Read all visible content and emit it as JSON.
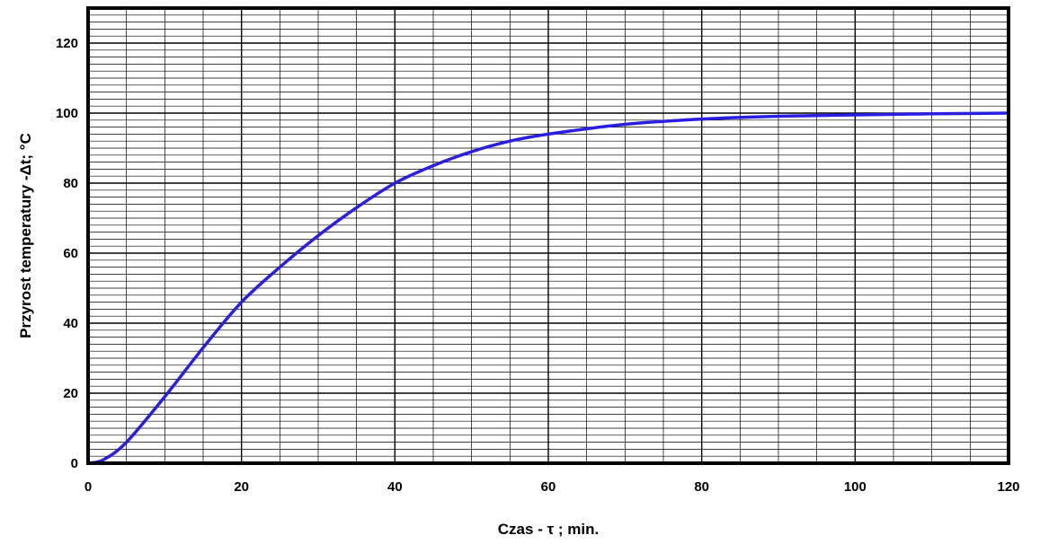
{
  "chart_data": {
    "type": "line",
    "title": "",
    "xlabel": "Czas - τ ; min.",
    "ylabel": "Przyrost temperatury -Δt; °C",
    "xlim": [
      0,
      120
    ],
    "ylim": [
      0,
      130
    ],
    "xticks": [
      0,
      20,
      40,
      60,
      80,
      100,
      120
    ],
    "yticks": [
      0,
      20,
      40,
      60,
      80,
      100,
      120
    ],
    "x_minor_step": 5,
    "y_minor_step": 2,
    "grid": true,
    "legend": "none",
    "series": [
      {
        "color": "#2a1fe0",
        "x": [
          0,
          2,
          5,
          10,
          15,
          20,
          25,
          30,
          35,
          40,
          45,
          50,
          55,
          60,
          70,
          80,
          90,
          100,
          110,
          120
        ],
        "y": [
          0,
          1,
          6,
          19,
          33,
          46,
          56,
          65,
          73,
          80,
          85,
          89,
          92,
          94,
          96.8,
          98.3,
          99.1,
          99.5,
          99.8,
          100
        ]
      }
    ]
  }
}
